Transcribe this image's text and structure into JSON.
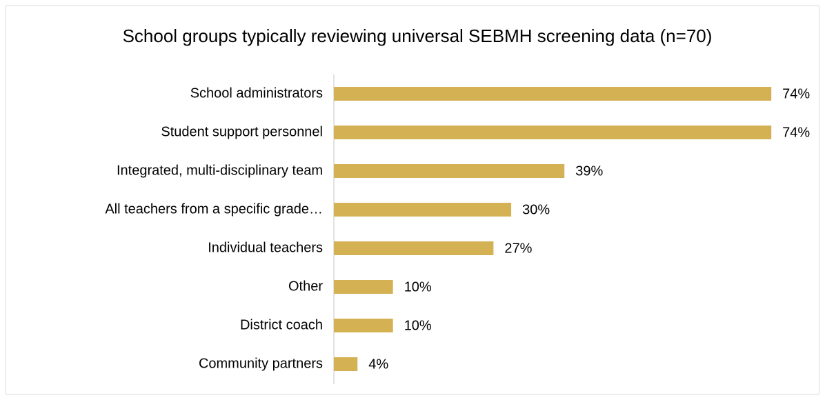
{
  "chart_data": {
    "type": "bar",
    "orientation": "horizontal",
    "title": "School groups typically reviewing universal SEBMH screening data (n=70)",
    "categories": [
      "School administrators",
      "Student support personnel",
      "Integrated, multi-disciplinary team",
      "All teachers from a specific grade…",
      "Individual teachers",
      "Other",
      "District coach",
      "Community partners"
    ],
    "values": [
      74,
      74,
      39,
      30,
      27,
      10,
      10,
      4
    ],
    "value_labels": [
      "74%",
      "74%",
      "39%",
      "30%",
      "27%",
      "10%",
      "10%",
      "4%"
    ],
    "color": "#d4b254"
  }
}
